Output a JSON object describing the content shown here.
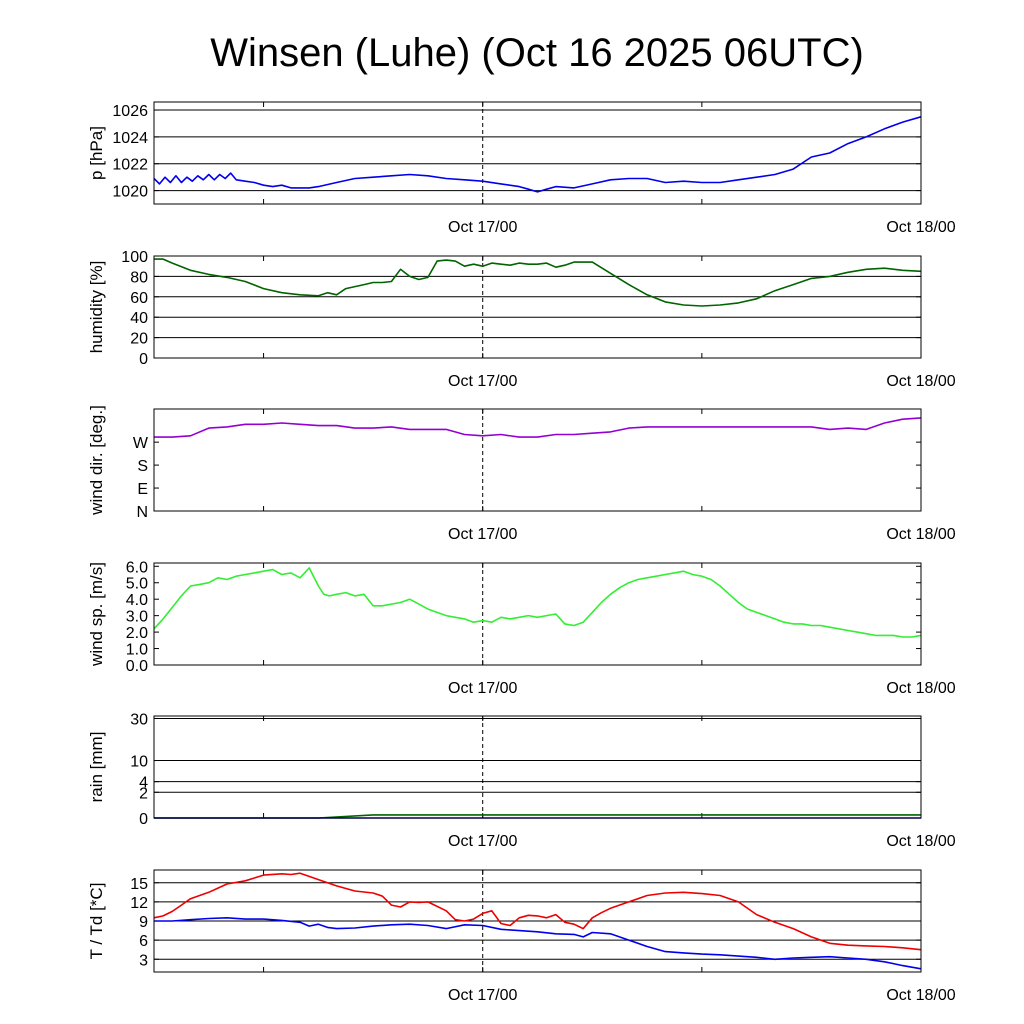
{
  "title": "Winsen (Luhe) (Oct 16 2025 06UTC)",
  "time_axis": {
    "unit": "hours since Oct 16 2025 06UTC",
    "range": [
      0,
      42
    ],
    "labels": [
      {
        "t": 18,
        "text": "Oct 17/00"
      },
      {
        "t": 42,
        "text": "Oct 18/00"
      }
    ],
    "minor_ticks": [
      6,
      18,
      30,
      42
    ],
    "dashed_marker": 18
  },
  "chart_data": [
    {
      "id": "pressure",
      "type": "line",
      "ylabel": "p [hPa]",
      "ylim": [
        1019,
        1026.6
      ],
      "grid": [
        1020,
        1022,
        1024,
        1026
      ],
      "yticks": [
        {
          "v": 1020,
          "label": "1020"
        },
        {
          "v": 1022,
          "label": "1022"
        },
        {
          "v": 1024,
          "label": "1024"
        },
        {
          "v": 1026,
          "label": "1026"
        }
      ],
      "series": [
        {
          "color": "#0000ee",
          "x": [
            0,
            0.3,
            0.6,
            0.9,
            1.2,
            1.5,
            1.8,
            2.1,
            2.4,
            2.7,
            3,
            3.3,
            3.6,
            3.9,
            4.2,
            4.5,
            5,
            5.5,
            6,
            6.5,
            7,
            7.5,
            8,
            8.5,
            9,
            10,
            11,
            12,
            13,
            14,
            15,
            16,
            17,
            18,
            19,
            20,
            20.5,
            21,
            21.5,
            22,
            23,
            24,
            25,
            26,
            27,
            28,
            29,
            30,
            31,
            32,
            33,
            34,
            35,
            36,
            37,
            38,
            39,
            40,
            41,
            42
          ],
          "values": [
            1020.9,
            1020.5,
            1021.0,
            1020.6,
            1021.1,
            1020.6,
            1021.0,
            1020.7,
            1021.1,
            1020.8,
            1021.2,
            1020.8,
            1021.2,
            1020.9,
            1021.3,
            1020.8,
            1020.7,
            1020.6,
            1020.4,
            1020.3,
            1020.4,
            1020.2,
            1020.2,
            1020.2,
            1020.3,
            1020.6,
            1020.9,
            1021.0,
            1021.1,
            1021.2,
            1021.1,
            1020.9,
            1020.8,
            1020.7,
            1020.5,
            1020.3,
            1020.1,
            1019.9,
            1020.1,
            1020.3,
            1020.2,
            1020.5,
            1020.8,
            1020.9,
            1020.9,
            1020.6,
            1020.7,
            1020.6,
            1020.6,
            1020.8,
            1021.0,
            1021.2,
            1021.6,
            1022.5,
            1022.8,
            1023.5,
            1024.0,
            1024.6,
            1025.1,
            1025.5
          ]
        }
      ]
    },
    {
      "id": "humidity",
      "type": "line",
      "ylabel": "humidity [%]",
      "ylim": [
        0,
        100
      ],
      "grid": [
        20,
        40,
        60,
        80,
        100
      ],
      "yticks": [
        {
          "v": 0,
          "label": "0"
        },
        {
          "v": 20,
          "label": "20"
        },
        {
          "v": 40,
          "label": "40"
        },
        {
          "v": 60,
          "label": "60"
        },
        {
          "v": 80,
          "label": "80"
        },
        {
          "v": 100,
          "label": "100"
        }
      ],
      "series": [
        {
          "color": "#006400",
          "x": [
            0,
            0.5,
            1,
            2,
            3,
            4,
            5,
            6,
            7,
            8,
            9,
            9.5,
            10,
            10.5,
            11,
            11.5,
            12,
            12.5,
            13,
            13.5,
            14,
            14.5,
            15,
            15.5,
            16,
            16.5,
            17,
            17.5,
            18,
            18.5,
            19,
            19.5,
            20,
            20.5,
            21,
            21.5,
            22,
            22.5,
            23,
            24,
            25,
            26,
            27,
            28,
            29,
            30,
            31,
            32,
            33,
            34,
            35,
            36,
            37,
            38,
            39,
            40,
            41,
            42
          ],
          "values": [
            97,
            97,
            93,
            86,
            82,
            79,
            75,
            68,
            64,
            62,
            61,
            64,
            62,
            68,
            70,
            72,
            74,
            74,
            75,
            87,
            80,
            77,
            79,
            95,
            96,
            95,
            90,
            92,
            90,
            93,
            92,
            91,
            93,
            92,
            92,
            93,
            89,
            91,
            94,
            94,
            83,
            72,
            62,
            55,
            52,
            51,
            52,
            54,
            58,
            66,
            72,
            78,
            80,
            84,
            87,
            88,
            86,
            85
          ]
        }
      ]
    },
    {
      "id": "wind_direction",
      "type": "line",
      "ylabel": "wind dir. [deg.]",
      "ylim": [
        0,
        400
      ],
      "yticks": [
        {
          "v": 0,
          "label": "N"
        },
        {
          "v": 90,
          "label": "E"
        },
        {
          "v": 180,
          "label": "S"
        },
        {
          "v": 270,
          "label": "W"
        }
      ],
      "series": [
        {
          "color": "#9400d3",
          "x": [
            0,
            1,
            2,
            3,
            4,
            5,
            6,
            7,
            8,
            9,
            10,
            11,
            12,
            13,
            14,
            15,
            16,
            17,
            18,
            19,
            20,
            21,
            22,
            23,
            24,
            25,
            26,
            27,
            28,
            29,
            30,
            31,
            32,
            33,
            34,
            35,
            36,
            37,
            38,
            39,
            40,
            41,
            42
          ],
          "values": [
            290,
            290,
            295,
            325,
            330,
            340,
            340,
            345,
            340,
            335,
            335,
            325,
            325,
            330,
            320,
            320,
            320,
            300,
            295,
            300,
            290,
            290,
            300,
            300,
            305,
            310,
            325,
            330,
            330,
            330,
            330,
            330,
            330,
            330,
            330,
            330,
            330,
            320,
            325,
            320,
            345,
            360,
            365
          ]
        }
      ]
    },
    {
      "id": "wind_speed",
      "type": "line",
      "ylabel": "wind sp. [m/s]",
      "ylim": [
        0,
        6.2
      ],
      "yticks": [
        {
          "v": 0,
          "label": "0.0"
        },
        {
          "v": 1,
          "label": "1.0"
        },
        {
          "v": 2,
          "label": "2.0"
        },
        {
          "v": 3,
          "label": "3.0"
        },
        {
          "v": 4,
          "label": "4.0"
        },
        {
          "v": 5,
          "label": "5.0"
        },
        {
          "v": 6,
          "label": "6.0"
        }
      ],
      "series": [
        {
          "color": "#33ee33",
          "x": [
            0,
            0.5,
            1,
            1.5,
            2,
            2.5,
            3,
            3.5,
            4,
            4.5,
            5,
            5.5,
            6,
            6.5,
            7,
            7.5,
            8,
            8.5,
            9,
            9.3,
            9.6,
            10,
            10.5,
            11,
            11.5,
            12,
            12.5,
            13,
            13.5,
            14,
            14.5,
            15,
            15.5,
            16,
            16.5,
            17,
            17.5,
            18,
            18.5,
            19,
            19.5,
            20,
            20.5,
            21,
            21.5,
            22,
            22.5,
            23,
            23.5,
            24,
            24.5,
            25,
            25.5,
            26,
            26.5,
            27,
            27.5,
            28,
            28.5,
            29,
            29.5,
            30,
            30.5,
            31,
            31.5,
            32,
            32.5,
            33,
            33.5,
            34,
            34.5,
            35,
            35.5,
            36,
            36.5,
            37,
            37.5,
            38,
            38.5,
            39,
            39.5,
            40,
            40.5,
            41,
            41.5,
            42
          ],
          "values": [
            2.2,
            2.8,
            3.5,
            4.2,
            4.8,
            4.9,
            5.0,
            5.3,
            5.2,
            5.4,
            5.5,
            5.6,
            5.7,
            5.8,
            5.5,
            5.6,
            5.3,
            5.9,
            4.8,
            4.3,
            4.2,
            4.3,
            4.4,
            4.2,
            4.3,
            3.6,
            3.6,
            3.7,
            3.8,
            4.0,
            3.7,
            3.4,
            3.2,
            3.0,
            2.9,
            2.8,
            2.6,
            2.7,
            2.6,
            2.9,
            2.8,
            2.9,
            3.0,
            2.9,
            3.0,
            3.1,
            2.5,
            2.4,
            2.6,
            3.2,
            3.8,
            4.3,
            4.7,
            5.0,
            5.2,
            5.3,
            5.4,
            5.5,
            5.6,
            5.7,
            5.5,
            5.4,
            5.2,
            4.8,
            4.3,
            3.8,
            3.4,
            3.2,
            3.0,
            2.8,
            2.6,
            2.5,
            2.5,
            2.4,
            2.4,
            2.3,
            2.2,
            2.1,
            2.0,
            1.9,
            1.8,
            1.8,
            1.8,
            1.7,
            1.7,
            1.8
          ]
        }
      ]
    },
    {
      "id": "rain",
      "type": "line",
      "ylabel": "rain [mm]",
      "ylim": [
        0,
        31.5
      ],
      "scale": "sqrt",
      "grid": [
        2,
        4,
        10,
        30
      ],
      "yticks": [
        {
          "v": 0,
          "label": "0"
        },
        {
          "v": 2,
          "label": "2"
        },
        {
          "v": 4,
          "label": "4"
        },
        {
          "v": 10,
          "label": "10"
        },
        {
          "v": 30,
          "label": "30"
        }
      ],
      "series": [
        {
          "color": "#006400",
          "x": [
            0,
            9,
            12,
            42
          ],
          "values": [
            0,
            0,
            0.03,
            0.03
          ]
        },
        {
          "color": "#0000ee",
          "x": [
            0,
            42
          ],
          "values": [
            0,
            0
          ]
        }
      ]
    },
    {
      "id": "temperature",
      "type": "line",
      "ylabel": "T / Td [*C]",
      "ylim": [
        1,
        17
      ],
      "grid": [
        3,
        6,
        9,
        12,
        15
      ],
      "yticks": [
        {
          "v": 3,
          "label": "3"
        },
        {
          "v": 6,
          "label": "6"
        },
        {
          "v": 9,
          "label": "9"
        },
        {
          "v": 12,
          "label": "12"
        },
        {
          "v": 15,
          "label": "15"
        }
      ],
      "series": [
        {
          "color": "#ee0000",
          "x": [
            0,
            0.5,
            1,
            1.5,
            2,
            3,
            4,
            5,
            6,
            7,
            7.5,
            8,
            8.5,
            9,
            9.5,
            10,
            11,
            12,
            12.5,
            13,
            13.5,
            14,
            14.5,
            15,
            16,
            16.5,
            17,
            17.5,
            18,
            18.5,
            19,
            19.5,
            20,
            20.5,
            21,
            21.5,
            22,
            22.5,
            23,
            23.5,
            24,
            24.5,
            25,
            26,
            27,
            28,
            29,
            30,
            31,
            32,
            33,
            34,
            35,
            36,
            37,
            38,
            39,
            40,
            41,
            42
          ],
          "values": [
            9.5,
            9.8,
            10.5,
            11.5,
            12.5,
            13.5,
            14.8,
            15.3,
            16.2,
            16.4,
            16.3,
            16.5,
            16.0,
            15.5,
            15.0,
            14.5,
            13.7,
            13.4,
            12.9,
            11.5,
            11.2,
            12.0,
            11.9,
            12.0,
            10.6,
            9.2,
            9.0,
            9.3,
            10.2,
            10.6,
            8.6,
            8.3,
            9.5,
            9.9,
            9.8,
            9.5,
            10.0,
            8.8,
            8.5,
            7.8,
            9.5,
            10.3,
            11.0,
            12.0,
            13.0,
            13.4,
            13.5,
            13.3,
            13.0,
            12.0,
            10.0,
            8.8,
            7.8,
            6.5,
            5.5,
            5.2,
            5.1,
            5.0,
            4.8,
            4.5
          ]
        },
        {
          "color": "#0000ee",
          "x": [
            0,
            1,
            2,
            3,
            4,
            5,
            6,
            7,
            8,
            8.5,
            9,
            9.5,
            10,
            11,
            12,
            13,
            14,
            15,
            16,
            17,
            18,
            19,
            20,
            21,
            22,
            23,
            23.5,
            24,
            25,
            26,
            27,
            28,
            29,
            30,
            31,
            32,
            33,
            34,
            35,
            36,
            37,
            38,
            39,
            40,
            41,
            42
          ],
          "values": [
            9.0,
            9.0,
            9.2,
            9.4,
            9.5,
            9.3,
            9.3,
            9.1,
            8.8,
            8.2,
            8.5,
            8.0,
            7.8,
            7.9,
            8.2,
            8.4,
            8.5,
            8.3,
            7.8,
            8.4,
            8.3,
            7.7,
            7.5,
            7.3,
            7.0,
            6.9,
            6.5,
            7.2,
            7.0,
            6.0,
            5.0,
            4.2,
            4.0,
            3.8,
            3.7,
            3.5,
            3.3,
            3.0,
            3.2,
            3.3,
            3.4,
            3.2,
            3.0,
            2.6,
            2.0,
            1.5
          ]
        }
      ]
    }
  ]
}
